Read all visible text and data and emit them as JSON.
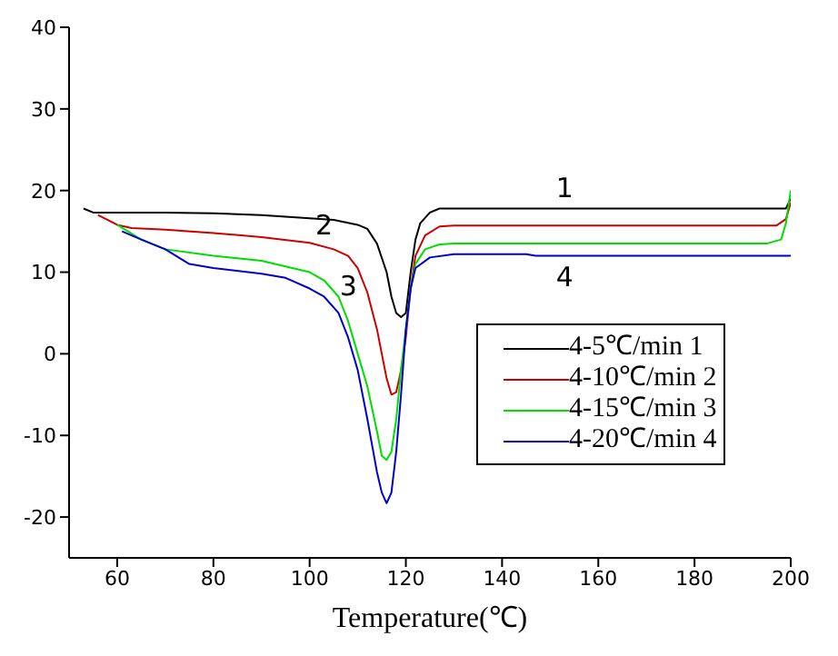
{
  "chart_data": {
    "type": "line",
    "xlabel": "Temperature(℃)",
    "xlim": [
      50,
      200
    ],
    "xticks": [
      60,
      80,
      100,
      120,
      140,
      160,
      180,
      200
    ],
    "ylim": [
      -25,
      40
    ],
    "yticks": [
      -20,
      -10,
      0,
      10,
      20,
      30,
      40
    ],
    "grid": false,
    "legend": "bottom right",
    "marker": "none",
    "line_style": "solid",
    "annotations": [
      {
        "text": "1",
        "x": 153,
        "y": 17.8
      },
      {
        "text": "2",
        "x": 103,
        "y": 13.3
      },
      {
        "text": "3",
        "x": 104,
        "y": 8.3
      },
      {
        "text": "4",
        "x": 153,
        "y": 12
      }
    ],
    "series": [
      {
        "name": "4-5℃/min 1",
        "color": "#000000",
        "x": [
          53,
          55,
          60,
          70,
          80,
          90,
          100,
          105,
          110,
          112,
          114,
          116,
          117,
          118,
          119,
          120,
          121,
          122,
          123,
          125,
          127,
          130,
          150,
          199,
          200
        ],
        "values": [
          17.8,
          17.3,
          17.3,
          17.3,
          17.2,
          17,
          16.6,
          16.4,
          15.8,
          15.3,
          13.5,
          10,
          7,
          5,
          4.5,
          5,
          10,
          14,
          16,
          17.3,
          17.8,
          17.8,
          17.8,
          17.8,
          19
        ]
      },
      {
        "name": "4-10℃/min 2",
        "color": "#cc0000",
        "x": [
          56,
          60,
          63,
          70,
          80,
          90,
          100,
          105,
          108,
          110,
          112,
          114,
          115,
          116,
          117,
          118,
          119,
          120,
          121,
          122,
          124,
          127,
          130,
          197,
          199,
          200
        ],
        "values": [
          17,
          15.8,
          15.4,
          15.2,
          14.8,
          14.3,
          13.6,
          12.8,
          12,
          10.5,
          7.5,
          3,
          0,
          -3,
          -5,
          -4.7,
          -2,
          2,
          8,
          12,
          14.5,
          15.6,
          15.7,
          15.7,
          16.5,
          18.5
        ]
      },
      {
        "name": "4-15℃/min 3",
        "color": "#00dd00",
        "x": [
          60,
          65,
          70,
          80,
          90,
          100,
          103,
          106,
          108,
          110,
          112,
          114,
          115,
          116,
          117,
          118,
          119,
          120,
          121,
          122,
          124,
          127,
          130,
          195,
          198,
          199,
          200
        ],
        "values": [
          15.8,
          14,
          12.8,
          12,
          11.4,
          10,
          9,
          7,
          4,
          0,
          -4,
          -9.5,
          -12.5,
          -13,
          -12,
          -8,
          -2,
          3,
          8,
          11,
          12.8,
          13.4,
          13.5,
          13.5,
          14,
          16,
          20
        ]
      },
      {
        "name": "4-20℃/min 4",
        "color": "#0000cc",
        "x": [
          61,
          65,
          70,
          75,
          80,
          90,
          95,
          100,
          103,
          106,
          108,
          110,
          112,
          114,
          115,
          116,
          117,
          118,
          119,
          120,
          121,
          122,
          125,
          130,
          145,
          147,
          200
        ],
        "values": [
          15,
          14,
          12.8,
          11,
          10.5,
          9.8,
          9.3,
          8,
          7,
          5,
          2,
          -2,
          -8,
          -14.5,
          -17,
          -18.3,
          -17,
          -12,
          -5,
          3,
          8,
          10.5,
          11.8,
          12.2,
          12.2,
          12,
          12
        ]
      }
    ]
  }
}
